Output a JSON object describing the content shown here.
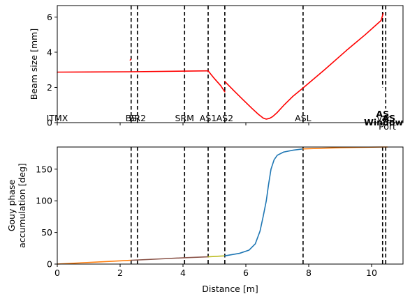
{
  "chart_data": [
    {
      "type": "line",
      "title": "",
      "xlabel": "",
      "ylabel": "Beam size [mm]",
      "xlim": [
        0,
        11
      ],
      "ylim": [
        0,
        6.65
      ],
      "xticks": [
        0,
        2,
        4,
        6,
        8,
        10
      ],
      "yticks": [
        0,
        2,
        4,
        6
      ],
      "xticklabels_shown": false,
      "grid": false,
      "series": [
        {
          "color": "#ff0000",
          "x": [
            0,
            2.35,
            4.8
          ],
          "y": [
            2.87,
            2.89,
            2.94
          ]
        },
        {
          "color": "#ff0000",
          "x": [
            2.32,
            2.34
          ],
          "y": [
            3.55,
            3.62
          ]
        },
        {
          "color": "#ff0000",
          "x": [
            4.8,
            5.0,
            5.2,
            5.33
          ],
          "y": [
            2.94,
            2.5,
            2.1,
            1.75
          ]
        },
        {
          "color": "#ff0000",
          "x": [
            5.33,
            5.6,
            5.9,
            6.2,
            6.4,
            6.55,
            6.65,
            6.75,
            6.85,
            7.0,
            7.2,
            7.5,
            7.82,
            8.5,
            9.2,
            9.8,
            10.3,
            10.37
          ],
          "y": [
            2.34,
            1.85,
            1.32,
            0.8,
            0.47,
            0.26,
            0.2,
            0.24,
            0.34,
            0.58,
            0.97,
            1.5,
            1.97,
            3.0,
            4.1,
            5.0,
            5.8,
            6.2
          ]
        }
      ],
      "vlines": [
        {
          "x": 2.35,
          "label": "BS"
        },
        {
          "x": 2.55,
          "label": "SR2"
        },
        {
          "x": 4.05,
          "label": "SRM"
        },
        {
          "x": 4.8,
          "label": "AS1"
        },
        {
          "x": 5.33,
          "label": "AS2"
        },
        {
          "x": 7.82,
          "label": "ASL"
        },
        {
          "x": 10.35,
          "label": "AS"
        },
        {
          "x": 10.45,
          "label": ""
        }
      ],
      "labels_at_base": [
        {
          "x": 0,
          "text": "ITMX"
        },
        {
          "x": 2.35,
          "text": "BS"
        },
        {
          "x": 2.55,
          "text": "SR2"
        },
        {
          "x": 4.05,
          "text": "SRM"
        },
        {
          "x": 4.8,
          "text": "AS1"
        },
        {
          "x": 5.33,
          "text": "AS2"
        },
        {
          "x": 7.82,
          "text": "ASL"
        },
        {
          "x": 10.35,
          "text": "AS"
        },
        {
          "x": 10.55,
          "text": "AS"
        },
        {
          "x": 10.38,
          "text": "Window"
        },
        {
          "x": 10.5,
          "text": "Port"
        },
        {
          "x": 10.4,
          "text": "Vac"
        }
      ]
    },
    {
      "type": "line",
      "title": "",
      "xlabel": "Distance [m]",
      "ylabel": "Gouy phase accumulation [deg]",
      "ylabel_lines": [
        "Gouy phase",
        "accumulation [deg]"
      ],
      "xlim": [
        0,
        11
      ],
      "ylim": [
        0,
        185
      ],
      "xticks": [
        0,
        2,
        4,
        6,
        8,
        10
      ],
      "yticks": [
        0,
        50,
        100,
        150
      ],
      "grid": false,
      "series": [
        {
          "color": "#ff7f0e",
          "x": [
            0,
            1.0,
            2.35
          ],
          "y": [
            0,
            2.5,
            6
          ]
        },
        {
          "color": "#8c564b",
          "x": [
            2.35,
            3.2,
            4.05,
            4.8
          ],
          "y": [
            6,
            8,
            10,
            11.5
          ]
        },
        {
          "color": "#bcbd22",
          "x": [
            4.8,
            5.0,
            5.33
          ],
          "y": [
            11.5,
            12,
            13
          ]
        },
        {
          "color": "#1f77b4",
          "x": [
            5.33,
            5.8,
            6.1,
            6.3,
            6.45,
            6.55,
            6.65,
            6.72,
            6.8,
            6.9,
            7.0,
            7.2,
            7.5,
            7.82
          ],
          "y": [
            13,
            17,
            22,
            32,
            52,
            75,
            100,
            125,
            150,
            165,
            172,
            177,
            180,
            182
          ]
        },
        {
          "color": "#ff7f0e",
          "x": [
            7.82,
            9.0,
            10.35,
            10.5
          ],
          "y": [
            182,
            184,
            185,
            185
          ]
        }
      ],
      "vlines": [
        {
          "x": 2.35
        },
        {
          "x": 2.55
        },
        {
          "x": 4.05
        },
        {
          "x": 4.8
        },
        {
          "x": 5.33
        },
        {
          "x": 7.82
        },
        {
          "x": 10.35
        },
        {
          "x": 10.45
        }
      ]
    }
  ]
}
